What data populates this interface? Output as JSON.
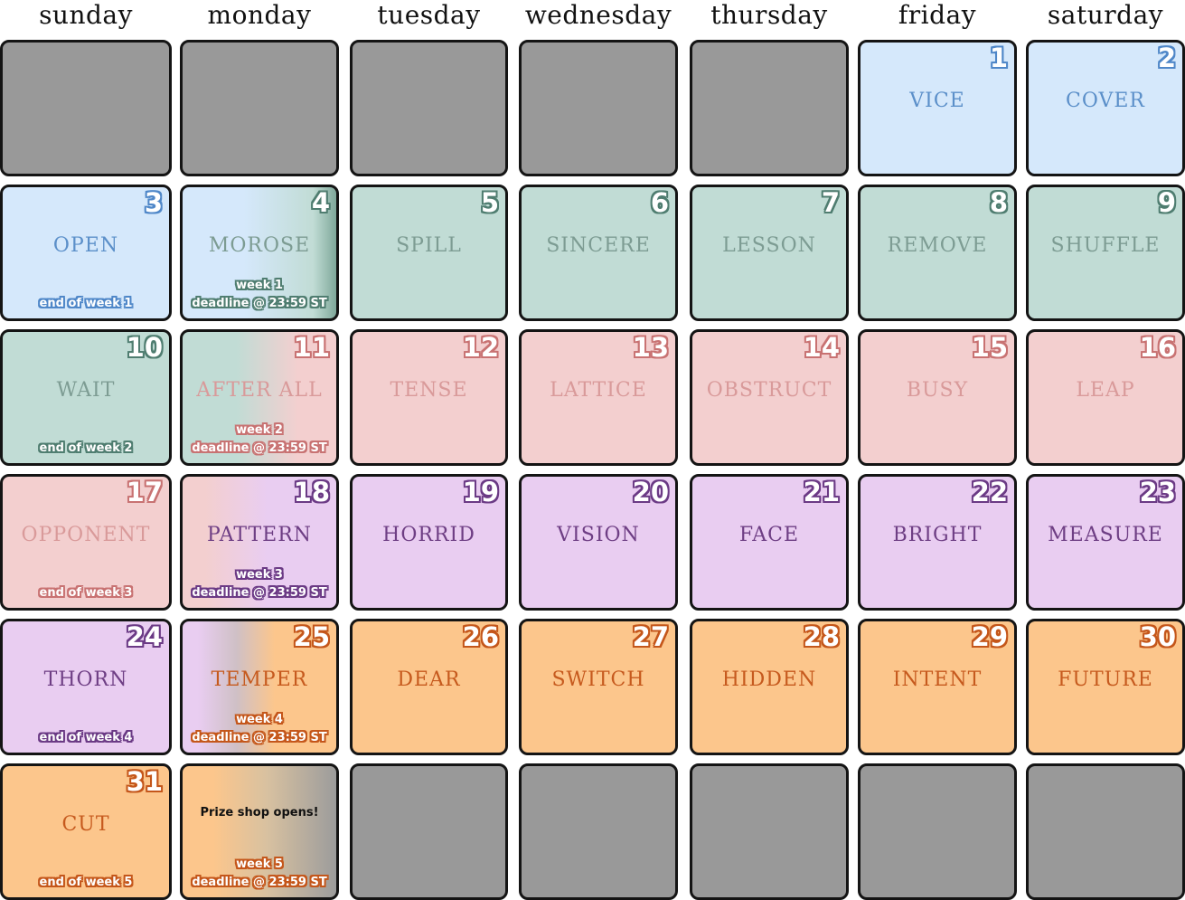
{
  "day_names": [
    "sunday",
    "monday",
    "tuesday",
    "wednesday",
    "thursday",
    "friday",
    "saturday"
  ],
  "weeks": [
    [
      {
        "empty": true
      },
      {
        "empty": true
      },
      {
        "empty": true
      },
      {
        "empty": true
      },
      {
        "empty": true
      },
      {
        "num": "1",
        "word": "VICE",
        "theme": "blue"
      },
      {
        "num": "2",
        "word": "COVER",
        "theme": "blue"
      }
    ],
    [
      {
        "num": "3",
        "word": "OPEN",
        "theme": "blue",
        "note": "end of week 1"
      },
      {
        "num": "4",
        "word": "MOROSE",
        "theme": "green",
        "bg": "g-blue-green",
        "week": "week 1",
        "deadline": "deadline @ 23:59 ST",
        "note_theme": "blue"
      },
      {
        "num": "5",
        "word": "SPILL",
        "theme": "green"
      },
      {
        "num": "6",
        "word": "SINCERE",
        "theme": "green"
      },
      {
        "num": "7",
        "word": "LESSON",
        "theme": "green"
      },
      {
        "num": "8",
        "word": "REMOVE",
        "theme": "green"
      },
      {
        "num": "9",
        "word": "SHUFFLE",
        "theme": "green"
      }
    ],
    [
      {
        "num": "10",
        "word": "WAIT",
        "theme": "green",
        "note": "end of week 2"
      },
      {
        "num": "11",
        "word": "AFTER ALL",
        "theme": "pink",
        "bg": "g-green-pink",
        "week": "week 2",
        "deadline": "deadline @ 23:59 ST",
        "note_theme": "green"
      },
      {
        "num": "12",
        "word": "TENSE",
        "theme": "pink"
      },
      {
        "num": "13",
        "word": "LATTICE",
        "theme": "pink"
      },
      {
        "num": "14",
        "word": "OBSTRUCT",
        "theme": "pink"
      },
      {
        "num": "15",
        "word": "BUSY",
        "theme": "pink"
      },
      {
        "num": "16",
        "word": "LEAP",
        "theme": "pink"
      }
    ],
    [
      {
        "num": "17",
        "word": "OPPONENT",
        "theme": "pink",
        "note": "end of week 3"
      },
      {
        "num": "18",
        "word": "PATTERN",
        "theme": "purple",
        "bg": "g-pink-purple",
        "week": "week 3",
        "deadline": "deadline @ 23:59 ST",
        "note_theme": "pink"
      },
      {
        "num": "19",
        "word": "HORRID",
        "theme": "purple"
      },
      {
        "num": "20",
        "word": "VISION",
        "theme": "purple"
      },
      {
        "num": "21",
        "word": "FACE",
        "theme": "purple"
      },
      {
        "num": "22",
        "word": "BRIGHT",
        "theme": "purple"
      },
      {
        "num": "23",
        "word": "MEASURE",
        "theme": "purple"
      }
    ],
    [
      {
        "num": "24",
        "word": "THORN",
        "theme": "purple",
        "note": "end of week 4"
      },
      {
        "num": "25",
        "word": "TEMPER",
        "theme": "orange",
        "bg": "g-purple-orange",
        "week": "week 4",
        "deadline": "deadline @ 23:59 ST",
        "note_theme": "purple"
      },
      {
        "num": "26",
        "word": "DEAR",
        "theme": "orange"
      },
      {
        "num": "27",
        "word": "SWITCH",
        "theme": "orange"
      },
      {
        "num": "28",
        "word": "HIDDEN",
        "theme": "orange"
      },
      {
        "num": "29",
        "word": "INTENT",
        "theme": "orange"
      },
      {
        "num": "30",
        "word": "FUTURE",
        "theme": "orange"
      }
    ],
    [
      {
        "num": "31",
        "word": "CUT",
        "theme": "orange",
        "note": "end of week 5"
      },
      {
        "prize": "Prize shop opens!",
        "theme": "orange",
        "bg": "g-orange-gray",
        "week": "week 5",
        "deadline": "deadline @ 23:59 ST",
        "note_theme": "orange"
      },
      {
        "empty": true
      },
      {
        "empty": true
      },
      {
        "empty": true
      },
      {
        "empty": true
      },
      {
        "empty": true
      }
    ]
  ]
}
